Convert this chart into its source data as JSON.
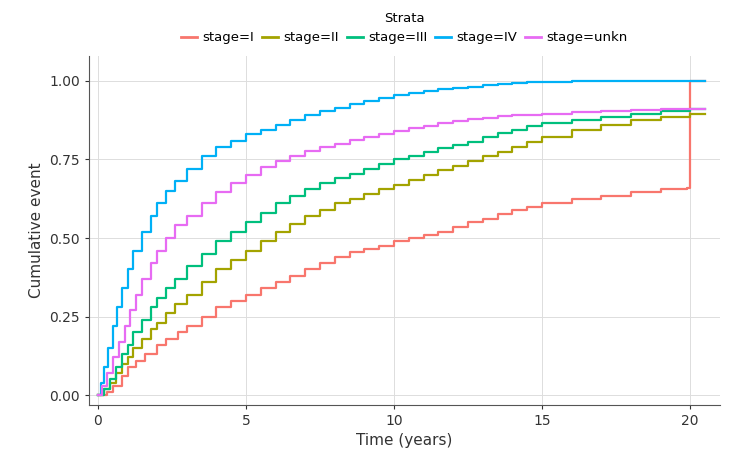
{
  "title": "",
  "xlabel": "Time (years)",
  "ylabel": "Cumulative event",
  "xlim": [
    -0.3,
    21
  ],
  "ylim": [
    -0.03,
    1.08
  ],
  "xticks": [
    0,
    5,
    10,
    15,
    20
  ],
  "yticks": [
    0.0,
    0.25,
    0.5,
    0.75,
    1.0
  ],
  "legend_title": "Strata",
  "legend_labels": [
    "stage=I",
    "stage=II",
    "stage=III",
    "stage=IV",
    "stage=unkn"
  ],
  "colors": {
    "stage_I": "#F8766D",
    "stage_II": "#A3A300",
    "stage_III": "#00BF7D",
    "stage_IV": "#00B0F6",
    "stage_unkn": "#E76BF3"
  },
  "background_color": "#FFFFFF",
  "stage_I": {
    "time": [
      0,
      0.3,
      0.5,
      0.8,
      1.0,
      1.3,
      1.6,
      2.0,
      2.3,
      2.7,
      3.0,
      3.5,
      4.0,
      4.5,
      5.0,
      5.5,
      6.0,
      6.5,
      7.0,
      7.5,
      8.0,
      8.5,
      9.0,
      9.5,
      10.0,
      10.5,
      11.0,
      11.5,
      12.0,
      12.5,
      13.0,
      13.5,
      14.0,
      14.5,
      15.0,
      16.0,
      17.0,
      18.0,
      19.0,
      19.9,
      20.0,
      20.5
    ],
    "event": [
      0,
      0.01,
      0.03,
      0.06,
      0.09,
      0.11,
      0.13,
      0.16,
      0.18,
      0.2,
      0.22,
      0.25,
      0.28,
      0.3,
      0.32,
      0.34,
      0.36,
      0.38,
      0.4,
      0.42,
      0.44,
      0.455,
      0.465,
      0.475,
      0.49,
      0.5,
      0.51,
      0.52,
      0.535,
      0.55,
      0.56,
      0.575,
      0.59,
      0.6,
      0.61,
      0.625,
      0.635,
      0.645,
      0.655,
      0.66,
      1.0,
      1.0
    ]
  },
  "stage_II": {
    "time": [
      0,
      0.2,
      0.4,
      0.6,
      0.8,
      1.0,
      1.2,
      1.5,
      1.8,
      2.0,
      2.3,
      2.6,
      3.0,
      3.5,
      4.0,
      4.5,
      5.0,
      5.5,
      6.0,
      6.5,
      7.0,
      7.5,
      8.0,
      8.5,
      9.0,
      9.5,
      10.0,
      10.5,
      11.0,
      11.5,
      12.0,
      12.5,
      13.0,
      13.5,
      14.0,
      14.5,
      15.0,
      16.0,
      17.0,
      18.0,
      19.0,
      20.0,
      20.5
    ],
    "event": [
      0,
      0.02,
      0.04,
      0.07,
      0.1,
      0.12,
      0.15,
      0.18,
      0.21,
      0.23,
      0.26,
      0.29,
      0.32,
      0.36,
      0.4,
      0.43,
      0.46,
      0.49,
      0.52,
      0.545,
      0.57,
      0.59,
      0.61,
      0.625,
      0.64,
      0.655,
      0.67,
      0.685,
      0.7,
      0.715,
      0.73,
      0.745,
      0.76,
      0.775,
      0.79,
      0.805,
      0.82,
      0.845,
      0.86,
      0.875,
      0.885,
      0.895,
      0.895
    ]
  },
  "stage_III": {
    "time": [
      0,
      0.2,
      0.4,
      0.6,
      0.8,
      1.0,
      1.2,
      1.5,
      1.8,
      2.0,
      2.3,
      2.6,
      3.0,
      3.5,
      4.0,
      4.5,
      5.0,
      5.5,
      6.0,
      6.5,
      7.0,
      7.5,
      8.0,
      8.5,
      9.0,
      9.5,
      10.0,
      10.5,
      11.0,
      11.5,
      12.0,
      12.5,
      13.0,
      13.5,
      14.0,
      14.5,
      15.0,
      16.0,
      17.0,
      18.0,
      19.0,
      20.0,
      20.5
    ],
    "event": [
      0,
      0.02,
      0.05,
      0.09,
      0.13,
      0.16,
      0.2,
      0.24,
      0.28,
      0.31,
      0.34,
      0.37,
      0.41,
      0.45,
      0.49,
      0.52,
      0.55,
      0.58,
      0.61,
      0.635,
      0.655,
      0.675,
      0.69,
      0.705,
      0.72,
      0.735,
      0.75,
      0.76,
      0.775,
      0.785,
      0.795,
      0.805,
      0.82,
      0.835,
      0.845,
      0.855,
      0.865,
      0.875,
      0.885,
      0.895,
      0.905,
      0.91,
      0.91
    ]
  },
  "stage_IV": {
    "time": [
      0,
      0.1,
      0.2,
      0.35,
      0.5,
      0.65,
      0.8,
      1.0,
      1.2,
      1.5,
      1.8,
      2.0,
      2.3,
      2.6,
      3.0,
      3.5,
      4.0,
      4.5,
      5.0,
      5.5,
      6.0,
      6.5,
      7.0,
      7.5,
      8.0,
      8.5,
      9.0,
      9.5,
      10.0,
      10.5,
      11.0,
      11.5,
      12.0,
      12.5,
      13.0,
      13.5,
      14.0,
      14.5,
      15.0,
      16.0,
      17.0,
      18.0,
      19.0,
      19.5,
      20.0,
      20.5
    ],
    "event": [
      0,
      0.04,
      0.09,
      0.15,
      0.22,
      0.28,
      0.34,
      0.4,
      0.46,
      0.52,
      0.57,
      0.61,
      0.65,
      0.68,
      0.72,
      0.76,
      0.79,
      0.81,
      0.83,
      0.845,
      0.86,
      0.875,
      0.89,
      0.905,
      0.915,
      0.925,
      0.935,
      0.945,
      0.955,
      0.962,
      0.968,
      0.974,
      0.978,
      0.982,
      0.986,
      0.99,
      0.993,
      0.996,
      0.998,
      0.999,
      1.0,
      1.0,
      1.0,
      1.0,
      1.0,
      1.0
    ]
  },
  "stage_unkn": {
    "time": [
      0,
      0.15,
      0.3,
      0.5,
      0.7,
      0.9,
      1.1,
      1.3,
      1.5,
      1.8,
      2.0,
      2.3,
      2.6,
      3.0,
      3.5,
      4.0,
      4.5,
      5.0,
      5.5,
      6.0,
      6.5,
      7.0,
      7.5,
      8.0,
      8.5,
      9.0,
      9.5,
      10.0,
      10.5,
      11.0,
      11.5,
      12.0,
      12.5,
      13.0,
      13.5,
      14.0,
      14.5,
      15.0,
      16.0,
      17.0,
      18.0,
      19.0,
      20.0,
      20.5
    ],
    "event": [
      0,
      0.03,
      0.07,
      0.12,
      0.17,
      0.22,
      0.27,
      0.32,
      0.37,
      0.42,
      0.46,
      0.5,
      0.54,
      0.57,
      0.61,
      0.645,
      0.675,
      0.7,
      0.725,
      0.745,
      0.762,
      0.778,
      0.79,
      0.8,
      0.812,
      0.822,
      0.832,
      0.842,
      0.85,
      0.858,
      0.865,
      0.872,
      0.878,
      0.883,
      0.887,
      0.89,
      0.892,
      0.895,
      0.9,
      0.905,
      0.908,
      0.91,
      0.91,
      0.91
    ]
  }
}
